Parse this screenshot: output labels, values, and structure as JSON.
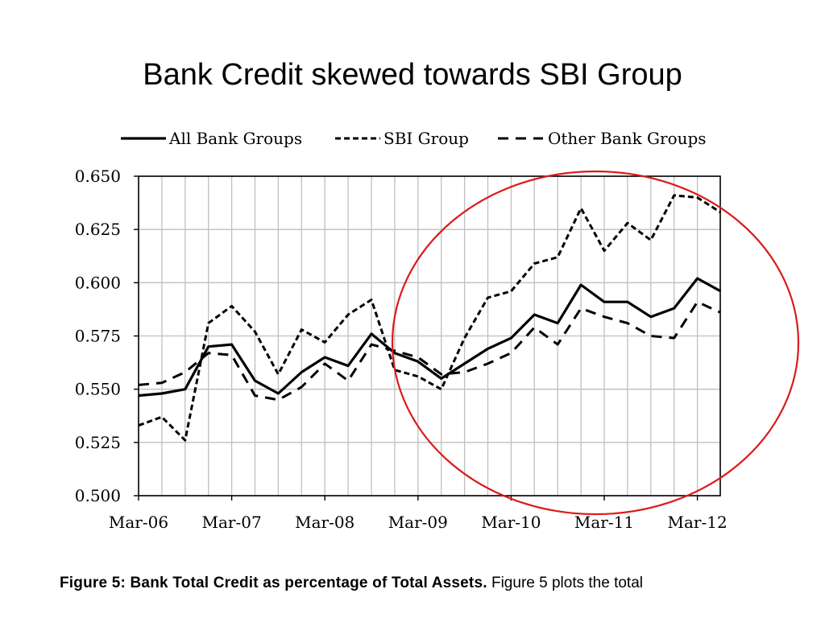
{
  "slide": {
    "title": "Bank Credit skewed towards SBI Group"
  },
  "caption": {
    "bold": "Figure 5: Bank Total Credit as percentage of Total Assets.",
    "rest": "Figure 5 plots the total"
  },
  "colors": {
    "line": "#000000",
    "grid": "#bfbfbf",
    "circle": "#dd1a1a"
  },
  "chart_data": {
    "type": "line",
    "title": "",
    "xlabel": "",
    "ylabel": "",
    "ylim": [
      0.5,
      0.65
    ],
    "yticks": [
      "0.650",
      "0.625",
      "0.600",
      "0.575",
      "0.550",
      "0.525",
      "0.500"
    ],
    "xtick_labels": [
      "Mar-06",
      "Mar-07",
      "Mar-08",
      "Mar-09",
      "Mar-10",
      "Mar-11",
      "Mar-12"
    ],
    "x": [
      "Mar-06",
      "Jun-06",
      "Sep-06",
      "Dec-06",
      "Mar-07",
      "Jun-07",
      "Sep-07",
      "Dec-07",
      "Mar-08",
      "Jun-08",
      "Sep-08",
      "Dec-08",
      "Mar-09",
      "Jun-09",
      "Sep-09",
      "Dec-09",
      "Mar-10",
      "Jun-10",
      "Sep-10",
      "Dec-10",
      "Mar-11",
      "Jun-11",
      "Sep-11",
      "Dec-11",
      "Mar-12",
      "Jun-12"
    ],
    "grid": true,
    "legend_position": "top",
    "series": [
      {
        "name": "All Bank Groups",
        "style": "solid",
        "values": [
          0.547,
          0.548,
          0.55,
          0.57,
          0.571,
          0.554,
          0.548,
          0.558,
          0.565,
          0.561,
          0.576,
          0.567,
          0.563,
          0.555,
          0.562,
          0.569,
          0.574,
          0.585,
          0.581,
          0.599,
          0.591,
          0.591,
          0.584,
          0.588,
          0.602,
          0.596
        ]
      },
      {
        "name": "SBI Group",
        "style": "short-dash",
        "values": [
          0.533,
          0.537,
          0.526,
          0.581,
          0.589,
          0.577,
          0.557,
          0.578,
          0.572,
          0.585,
          0.592,
          0.559,
          0.556,
          0.55,
          0.574,
          0.593,
          0.596,
          0.609,
          0.612,
          0.635,
          0.615,
          0.628,
          0.62,
          0.641,
          0.64,
          0.633
        ]
      },
      {
        "name": "Other Bank Groups",
        "style": "long-dash",
        "values": [
          0.552,
          0.553,
          0.558,
          0.567,
          0.566,
          0.547,
          0.545,
          0.551,
          0.562,
          0.554,
          0.571,
          0.568,
          0.565,
          0.557,
          0.558,
          0.562,
          0.567,
          0.579,
          0.571,
          0.588,
          0.584,
          0.581,
          0.575,
          0.574,
          0.591,
          0.586
        ]
      }
    ]
  }
}
